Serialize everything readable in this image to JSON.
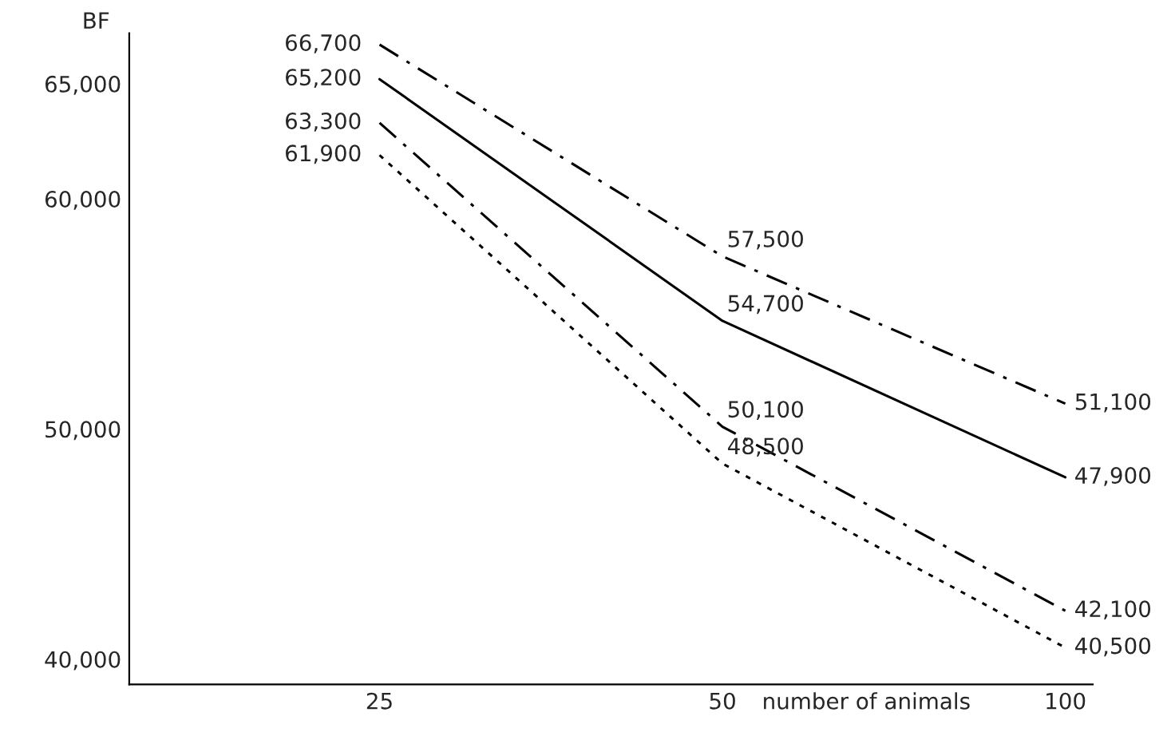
{
  "chart_data": {
    "type": "line",
    "ylabel": "BF",
    "xlabel": "number of animals",
    "categories": [
      "25",
      "50",
      "100"
    ],
    "ylim": [
      38900,
      67200
    ],
    "yticks": [
      {
        "value": 40000,
        "label": "40,000"
      },
      {
        "value": 50000,
        "label": "50,000"
      },
      {
        "value": 60000,
        "label": "60,000"
      },
      {
        "value": 65000,
        "label": "65,000"
      }
    ],
    "grid": false,
    "legend": false,
    "marker": "none",
    "series": [
      {
        "color": "#000000",
        "line_style": "dashed",
        "values": [
          66700,
          57500,
          51100
        ],
        "value_labels": [
          "66,700",
          "57,500",
          "51,100"
        ]
      },
      {
        "color": "#000000",
        "line_style": "solid",
        "values": [
          65200,
          54700,
          47900
        ],
        "value_labels": [
          "65,200",
          "54,700",
          "47,900"
        ]
      },
      {
        "color": "#000000",
        "line_style": "dashed",
        "values": [
          63300,
          50100,
          42100
        ],
        "value_labels": [
          "63,300",
          "50,100",
          "42,100"
        ]
      },
      {
        "color": "#000000",
        "line_style": "dotted",
        "values": [
          61900,
          48500,
          40500
        ],
        "value_labels": [
          "61,900",
          "48,500",
          "40,500"
        ]
      }
    ]
  }
}
